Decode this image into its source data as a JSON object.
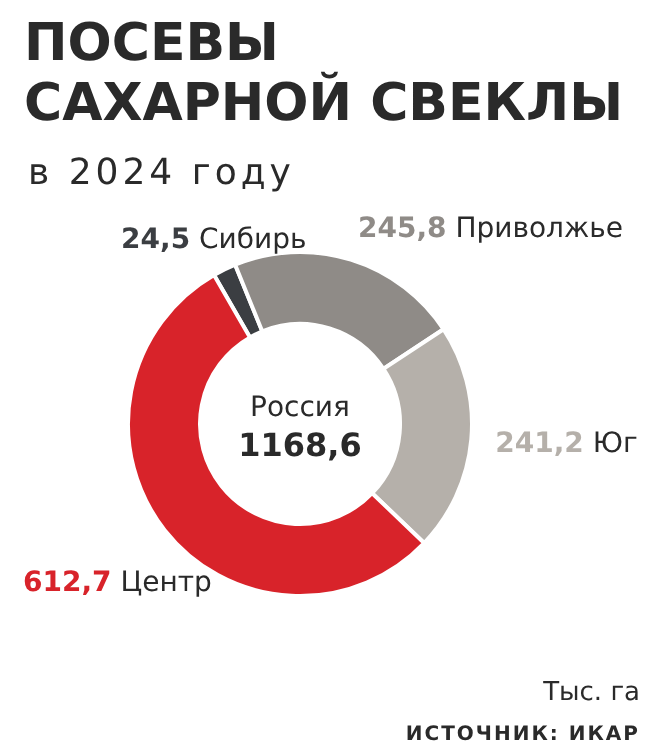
{
  "chart_data": {
    "type": "donut",
    "title": "ПОСЕВЫ\nСАХАРНОЙ СВЕКЛЫ",
    "subtitle": "в 2024 году",
    "categories": [
      "Сибирь",
      "Приволжье",
      "Юг",
      "Центр"
    ],
    "values": [
      24.5,
      245.8,
      241.2,
      612.7
    ],
    "value_labels": [
      "24,5",
      "245,8",
      "241,2",
      "612,7"
    ],
    "colors": [
      "#3b3e42",
      "#8f8b87",
      "#b5b0aa",
      "#d8232a"
    ],
    "annotations": [
      "Россия",
      "1168,6",
      "Тыс. га",
      "ИСТОЧНИК: ИКАР"
    ]
  }
}
